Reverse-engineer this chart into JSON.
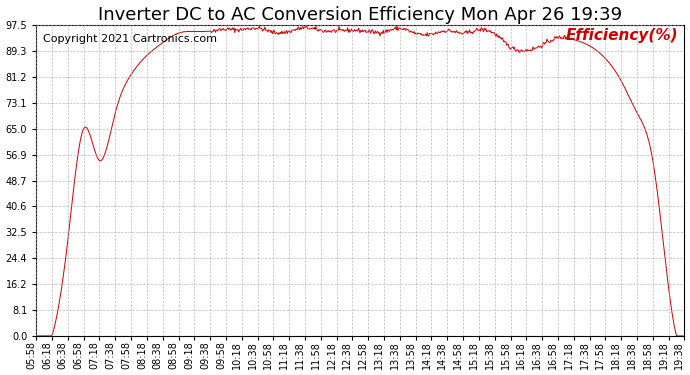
{
  "title": "Inverter DC to AC Conversion Efficiency Mon Apr 26 19:39",
  "copyright": "Copyright 2021 Cartronics.com",
  "legend_label": "Efficiency(%)",
  "line_color": "#cc0000",
  "background_color": "#ffffff",
  "grid_color": "#aaaaaa",
  "yticks": [
    0.0,
    8.1,
    16.2,
    24.4,
    32.5,
    40.6,
    48.7,
    56.9,
    65.0,
    73.1,
    81.2,
    89.3,
    97.5
  ],
  "ymin": 0.0,
  "ymax": 97.5,
  "title_fontsize": 13,
  "copyright_fontsize": 8,
  "legend_fontsize": 11,
  "tick_fontsize": 7,
  "xtick_rotation": 90
}
